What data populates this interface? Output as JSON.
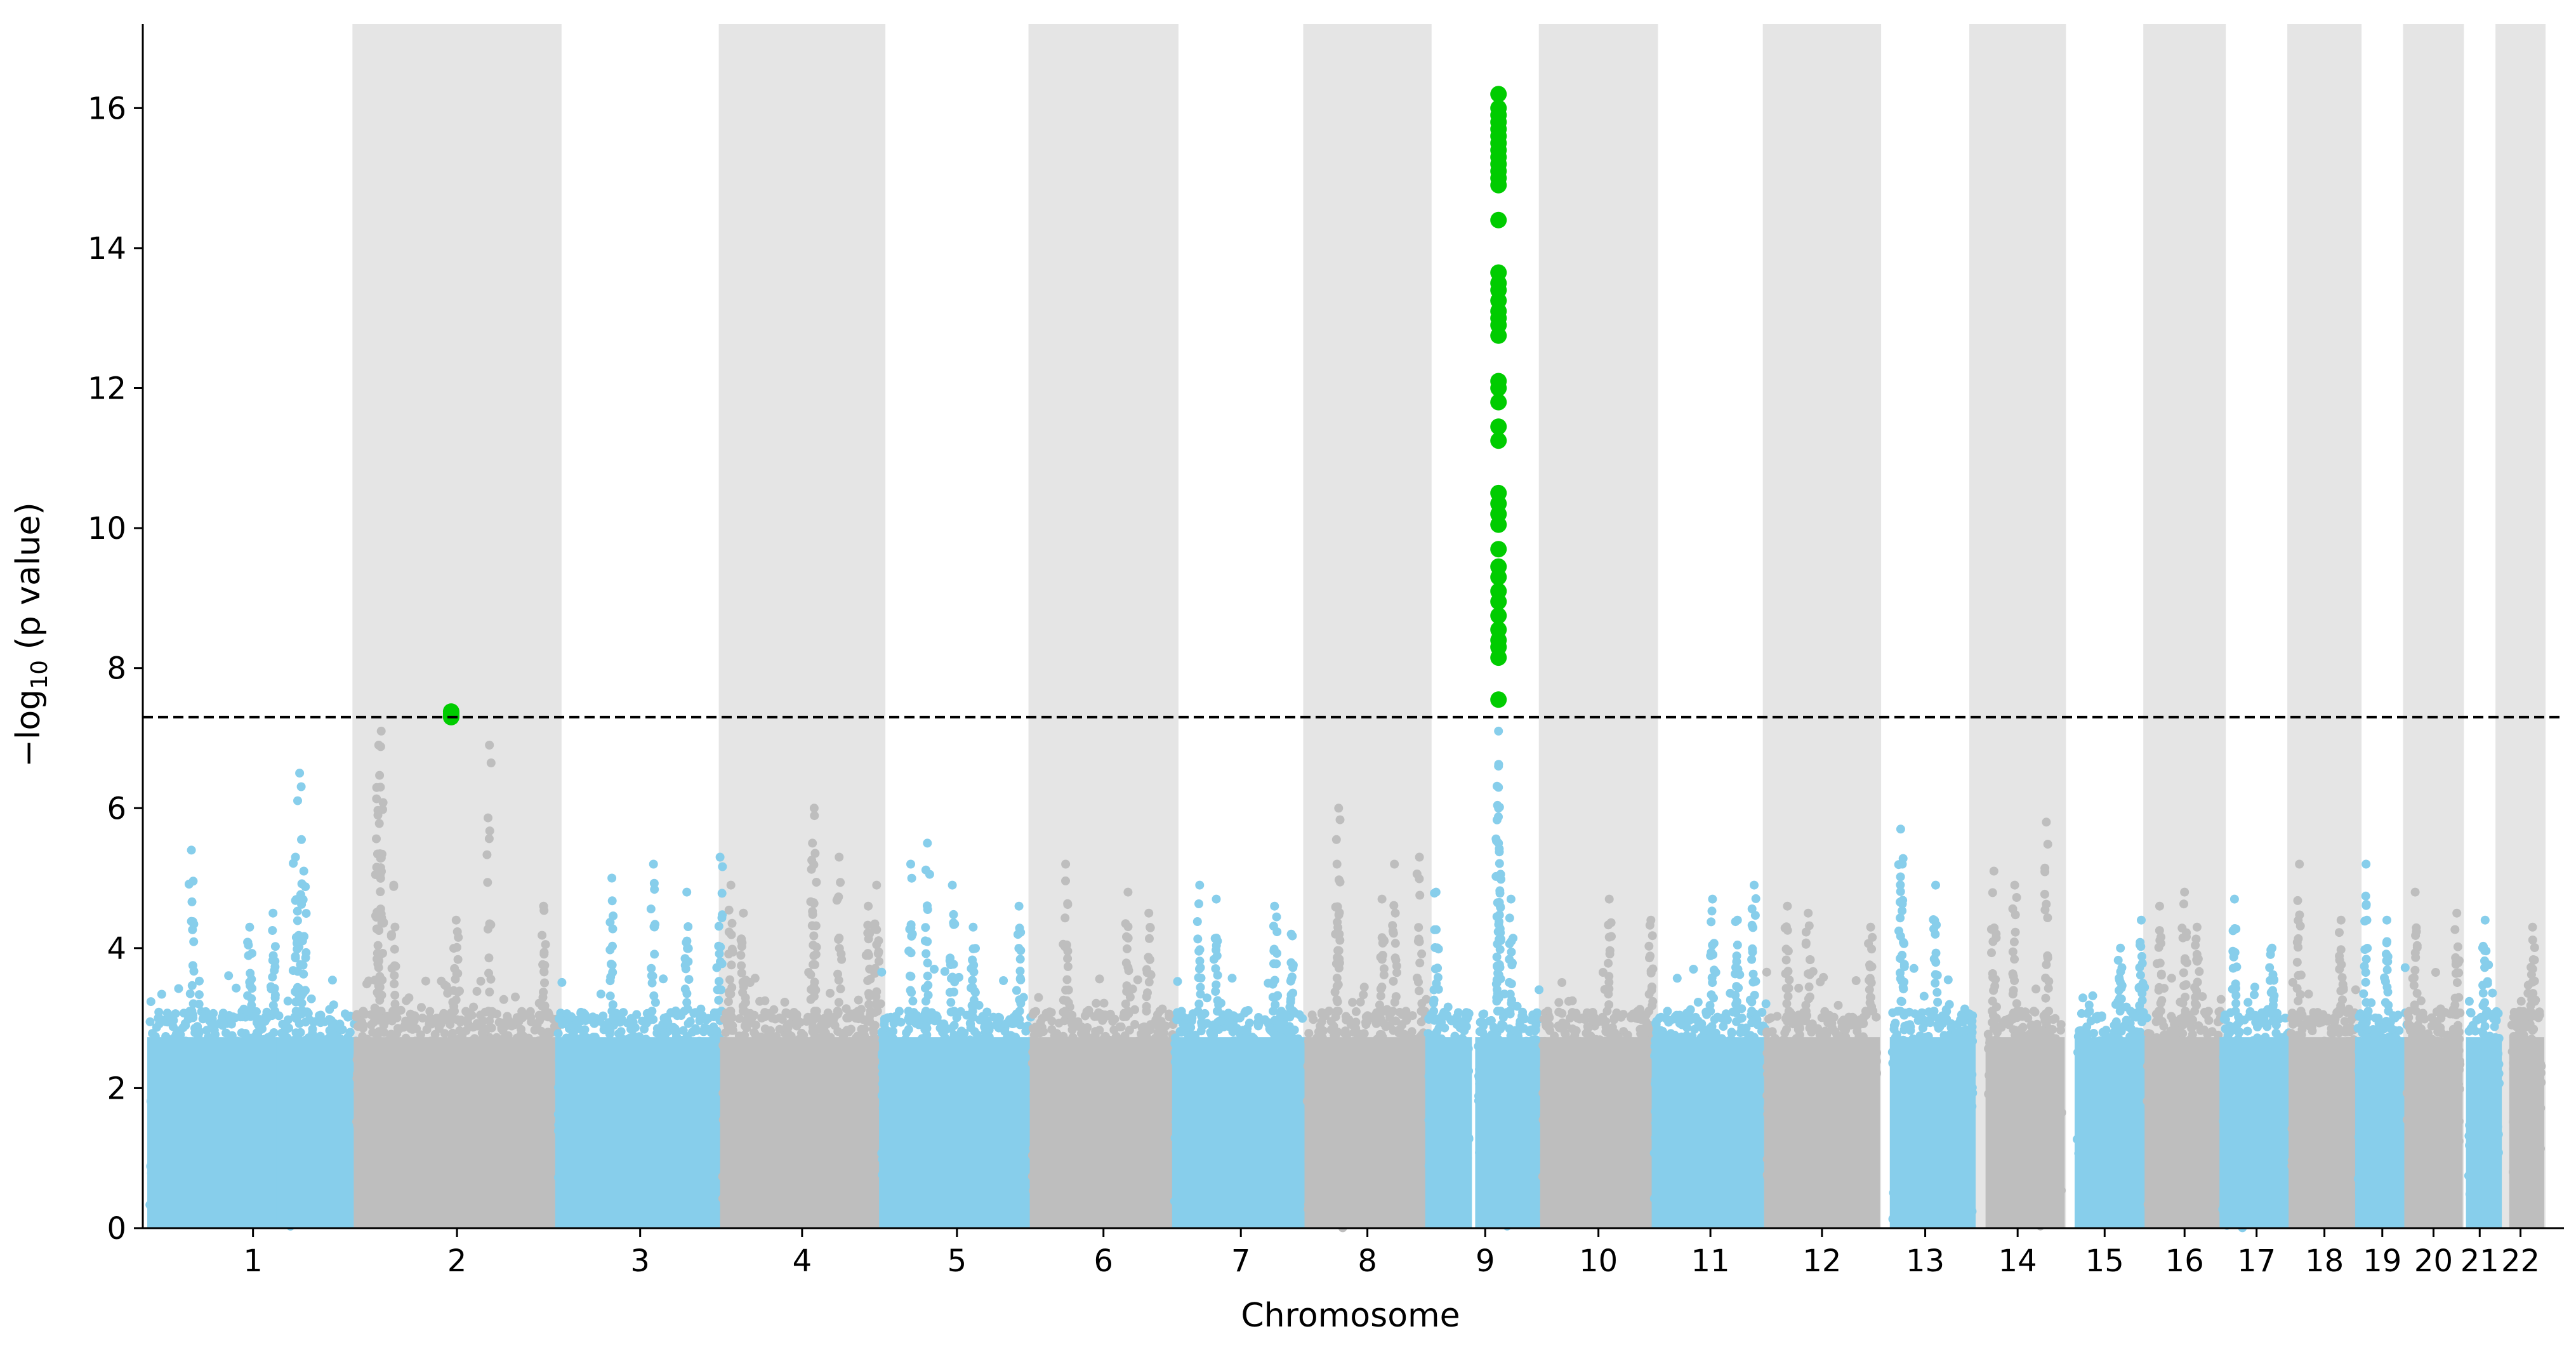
{
  "chart_data": {
    "type": "scatter",
    "subtype": "manhattan",
    "title": "",
    "xlabel": "Chromosome",
    "ylabel": "−log10 (p value)",
    "ylabel_parts": {
      "prefix": "−log",
      "subscript": "10",
      "suffix": " (p value)"
    },
    "ylim": [
      0,
      17.2
    ],
    "yticks": [
      0,
      2,
      4,
      6,
      8,
      10,
      12,
      14,
      16
    ],
    "significance_threshold": 7.3,
    "colors": {
      "odd_chromosome": "#87CEEB",
      "even_chromosome": "#BEBEBE",
      "significant": "#00CC00",
      "band": "#E5E5E5",
      "threshold_line": "#000000"
    },
    "chromosomes": [
      {
        "label": "1",
        "start": 0,
        "end": 248,
        "gap": [
          150,
          155
        ],
        "baseline": 3.1,
        "peaks": [
          [
            50,
            5.4
          ],
          [
            148,
            4.5
          ],
          [
            180,
            6.5
          ],
          [
            175,
            5.3
          ],
          [
            185,
            5.1
          ],
          [
            120,
            4.3
          ]
        ]
      },
      {
        "label": "2",
        "start": 248,
        "end": 490,
        "peaks": [
          [
            30,
            7.1
          ],
          [
            27,
            6.9
          ],
          [
            29,
            6.3
          ],
          [
            26,
            5.9
          ],
          [
            45,
            4.9
          ],
          [
            120,
            4.4
          ],
          [
            160,
            6.9
          ],
          [
            225,
            4.6
          ]
        ]
      },
      {
        "label": "3",
        "start": 490,
        "end": 688,
        "peaks": [
          [
            65,
            5.0
          ],
          [
            115,
            5.2
          ],
          [
            155,
            4.8
          ],
          [
            195,
            5.3
          ]
        ]
      },
      {
        "label": "4",
        "start": 688,
        "end": 879,
        "peaks": [
          [
            10,
            4.9
          ],
          [
            25,
            4.5
          ],
          [
            110,
            6.0
          ],
          [
            108,
            5.5
          ],
          [
            140,
            5.3
          ],
          [
            185,
            4.9
          ],
          [
            175,
            4.6
          ]
        ]
      },
      {
        "label": "5",
        "start": 879,
        "end": 1060,
        "peaks": [
          [
            35,
            5.2
          ],
          [
            55,
            5.5
          ],
          [
            110,
            4.3
          ],
          [
            165,
            4.6
          ],
          [
            85,
            4.9
          ]
        ]
      },
      {
        "label": "6",
        "start": 1060,
        "end": 1231,
        "peaks": [
          [
            40,
            5.2
          ],
          [
            115,
            4.8
          ],
          [
            140,
            4.5
          ]
        ]
      },
      {
        "label": "7",
        "start": 1231,
        "end": 1390,
        "peaks": [
          [
            30,
            4.9
          ],
          [
            50,
            4.7
          ],
          [
            120,
            4.6
          ],
          [
            140,
            4.2
          ]
        ]
      },
      {
        "label": "8",
        "start": 1390,
        "end": 1535,
        "peaks": [
          [
            38,
            6.0
          ],
          [
            36,
            5.2
          ],
          [
            105,
            5.2
          ],
          [
            135,
            5.3
          ],
          [
            90,
            4.7
          ]
        ]
      },
      {
        "label": "9",
        "start": 1535,
        "end": 1673,
        "gap": [
          50,
          60
        ],
        "peaks": [
          [
            10,
            4.8
          ],
          [
            100,
            4.7
          ],
          [
            85,
            7.1
          ],
          [
            85,
            6.6
          ],
          [
            85,
            6.0
          ],
          [
            85,
            5.5
          ]
        ]
      },
      {
        "label": "10",
        "start": 1673,
        "end": 1807,
        "peaks": [
          [
            80,
            4.7
          ],
          [
            130,
            4.4
          ]
        ]
      },
      {
        "label": "11",
        "start": 1807,
        "end": 1942,
        "peaks": [
          [
            70,
            4.7
          ],
          [
            120,
            4.9
          ],
          [
            100,
            4.4
          ]
        ]
      },
      {
        "label": "12",
        "start": 1942,
        "end": 2075,
        "peaks": [
          [
            25,
            4.6
          ],
          [
            50,
            4.5
          ],
          [
            125,
            4.3
          ]
        ]
      },
      {
        "label": "13",
        "start": 2075,
        "end": 2190,
        "gap": [
          0,
          18
        ],
        "peaks": [
          [
            28,
            5.7
          ],
          [
            30,
            5.2
          ],
          [
            70,
            4.9
          ]
        ]
      },
      {
        "label": "14",
        "start": 2190,
        "end": 2297,
        "gap": [
          0,
          18
        ],
        "peaks": [
          [
            25,
            5.1
          ],
          [
            88,
            5.8
          ],
          [
            50,
            4.9
          ]
        ]
      },
      {
        "label": "15",
        "start": 2297,
        "end": 2399,
        "gap": [
          0,
          18
        ],
        "peaks": [
          [
            95,
            4.4
          ],
          [
            70,
            4.0
          ]
        ]
      },
      {
        "label": "16",
        "start": 2399,
        "end": 2489,
        "peaks": [
          [
            15,
            4.6
          ],
          [
            45,
            4.8
          ],
          [
            60,
            4.3
          ]
        ]
      },
      {
        "label": "17",
        "start": 2489,
        "end": 2572,
        "peaks": [
          [
            15,
            4.7
          ],
          [
            60,
            4.0
          ]
        ]
      },
      {
        "label": "18",
        "start": 2572,
        "end": 2652,
        "peaks": [
          [
            10,
            5.2
          ],
          [
            60,
            4.4
          ]
        ]
      },
      {
        "label": "19",
        "start": 2652,
        "end": 2711,
        "peaks": [
          [
            10,
            5.2
          ],
          [
            35,
            4.4
          ]
        ]
      },
      {
        "label": "20",
        "start": 2711,
        "end": 2775,
        "peaks": [
          [
            10,
            4.8
          ],
          [
            60,
            4.5
          ]
        ]
      },
      {
        "label": "21",
        "start": 2775,
        "end": 2822,
        "gap": [
          0,
          10
        ],
        "peaks": [
          [
            30,
            4.4
          ]
        ]
      },
      {
        "label": "22",
        "start": 2822,
        "end": 2873,
        "gap": [
          0,
          15
        ],
        "peaks": [
          [
            40,
            4.3
          ]
        ]
      }
    ],
    "significant_hits": [
      {
        "chromosome": "2",
        "pos": 362,
        "values": [
          7.3,
          7.35,
          7.38,
          7.32
        ]
      },
      {
        "chromosome": "9",
        "pos": 1620,
        "values": [
          7.55,
          8.15,
          8.3,
          8.4,
          8.55,
          8.75,
          8.95,
          9.1,
          9.3,
          9.45,
          9.7,
          10.05,
          10.2,
          10.35,
          10.5,
          11.25,
          11.45,
          11.8,
          12.0,
          12.1,
          12.75,
          12.9,
          13.0,
          13.1,
          13.25,
          13.4,
          13.5,
          13.65,
          14.4,
          14.9,
          15.0,
          15.1,
          15.2,
          15.3,
          15.4,
          15.5,
          15.6,
          15.7,
          15.8,
          15.9,
          16.0,
          16.2
        ]
      }
    ]
  }
}
